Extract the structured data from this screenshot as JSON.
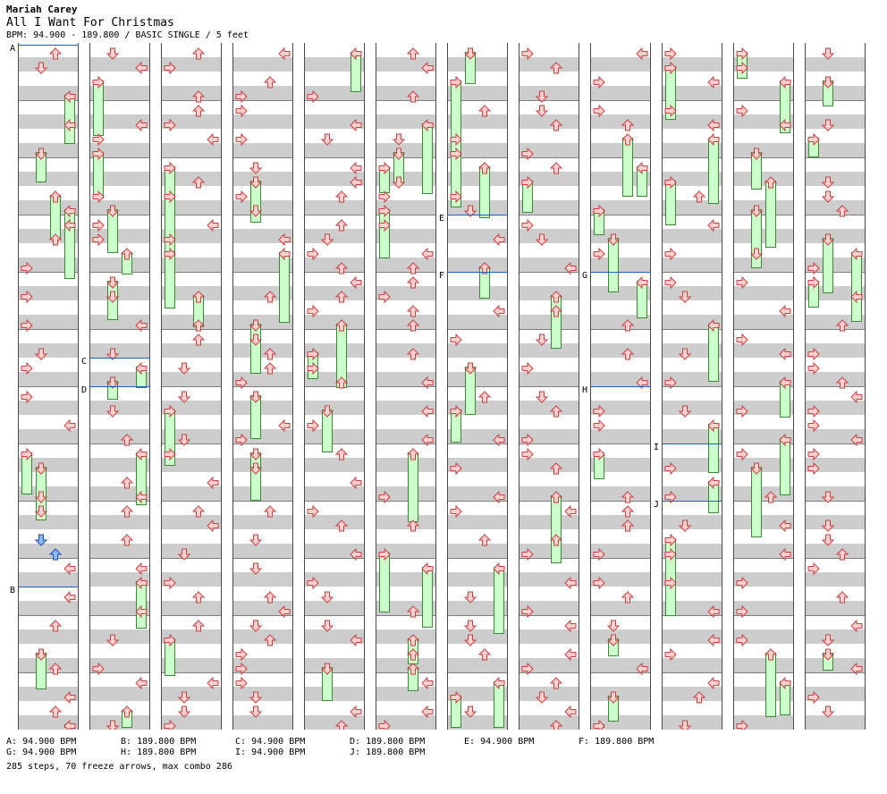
{
  "header": {
    "artist": "Mariah Carey",
    "title": "All I Want For Christmas",
    "meta": "BPM: 94.900 - 189.800 / BASIC SINGLE / 5 feet"
  },
  "colors": {
    "arrow_fill": "#ffd0d0",
    "arrow_stroke": "#c94040",
    "blue_arrow_fill": "#8ab8ff",
    "blue_arrow_stroke": "#2050b0",
    "freeze_fill": "#ccffcc",
    "freeze_stroke": "#3b8b3b",
    "bpm_line": "#1f5fbf",
    "stripe": "#cdcdcd"
  },
  "bpm_markers": [
    {
      "letter": "A",
      "value": "94.900 BPM"
    },
    {
      "letter": "B",
      "value": "189.800 BPM"
    },
    {
      "letter": "C",
      "value": "94.900 BPM"
    },
    {
      "letter": "D",
      "value": "189.800 BPM"
    },
    {
      "letter": "E",
      "value": "94.900 BPM"
    },
    {
      "letter": "F",
      "value": "189.800 BPM"
    },
    {
      "letter": "G",
      "value": "94.900 BPM"
    },
    {
      "letter": "H",
      "value": "189.800 BPM"
    },
    {
      "letter": "I",
      "value": "94.900 BPM"
    },
    {
      "letter": "J",
      "value": "189.800 BPM"
    }
  ],
  "stats": "285 steps, 70 freeze arrows, max combo 286",
  "chart": {
    "columns": 12,
    "measures_per_column": 12,
    "lanes": [
      "left",
      "down",
      "up",
      "right"
    ]
  }
}
